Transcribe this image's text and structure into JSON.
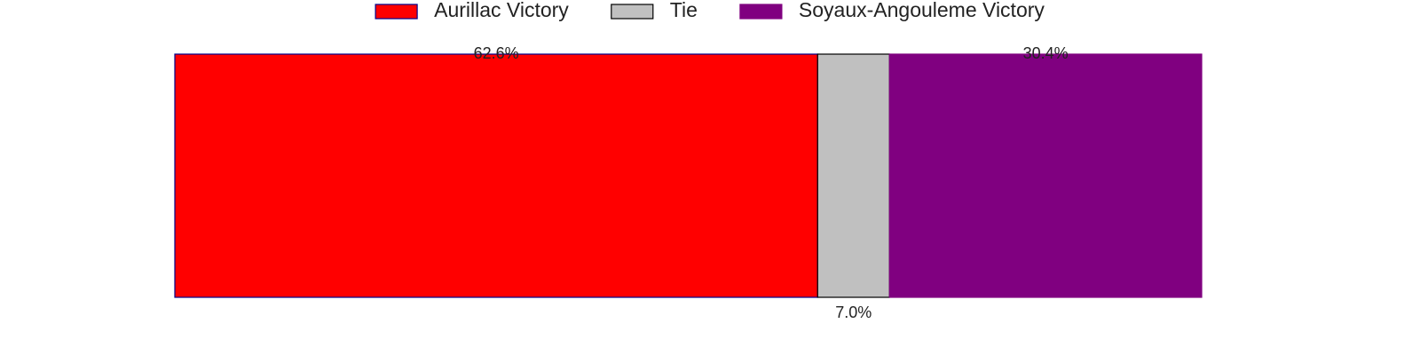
{
  "chart_data": {
    "type": "bar",
    "orientation": "horizontal-stacked",
    "title": "",
    "xlabel": "",
    "ylabel": "",
    "xlim": [
      0,
      100
    ],
    "grid": false,
    "legend_position": "top-center",
    "series": [
      {
        "name": "Aurillac Victory",
        "value": 62.6,
        "label": "62.6%",
        "label_position": "top",
        "color": "#ff0000",
        "edge_color": "#00008b"
      },
      {
        "name": "Tie",
        "value": 7.0,
        "label": "7.0%",
        "label_position": "bottom",
        "color": "#c0c0c0",
        "edge_color": "#000000"
      },
      {
        "name": "Soyaux-Angouleme Victory",
        "value": 30.4,
        "label": "30.4%",
        "label_position": "top",
        "color": "#800080",
        "edge_color": "#800080"
      }
    ]
  }
}
